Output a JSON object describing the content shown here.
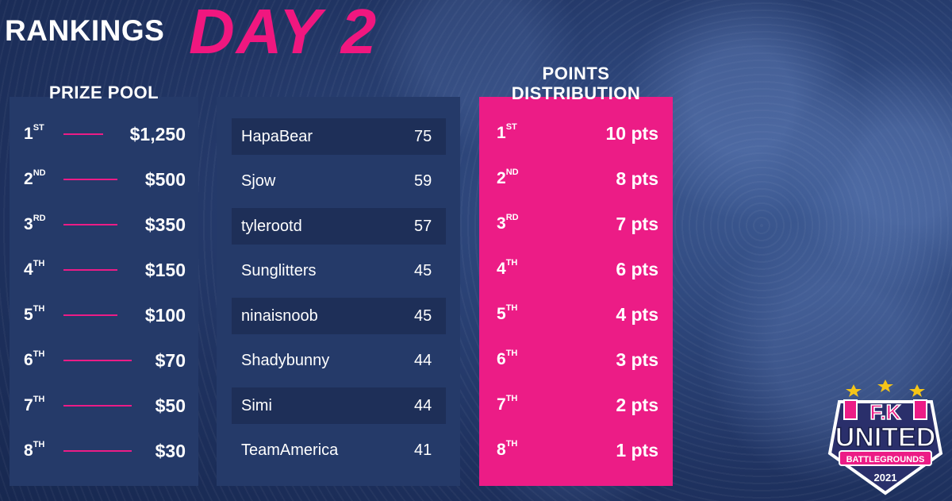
{
  "header": {
    "rankings": "RANKINGS",
    "day": "DAY 2"
  },
  "prize_pool": {
    "heading": "PRIZE POOL",
    "rows": [
      {
        "place": "1",
        "suffix": "ST",
        "amount": "$1,250"
      },
      {
        "place": "2",
        "suffix": "ND",
        "amount": "$500"
      },
      {
        "place": "3",
        "suffix": "RD",
        "amount": "$350"
      },
      {
        "place": "4",
        "suffix": "TH",
        "amount": "$150"
      },
      {
        "place": "5",
        "suffix": "TH",
        "amount": "$100"
      },
      {
        "place": "6",
        "suffix": "TH",
        "amount": "$70"
      },
      {
        "place": "7",
        "suffix": "TH",
        "amount": "$50"
      },
      {
        "place": "8",
        "suffix": "TH",
        "amount": "$30"
      }
    ]
  },
  "standings": [
    {
      "name": "HapaBear",
      "score": "75"
    },
    {
      "name": "Sjow",
      "score": "59"
    },
    {
      "name": "tylerootd",
      "score": "57"
    },
    {
      "name": "Sunglitters",
      "score": "45"
    },
    {
      "name": "ninaisnoob",
      "score": "45"
    },
    {
      "name": "Shadybunny",
      "score": "44"
    },
    {
      "name": "Simi",
      "score": "44"
    },
    {
      "name": "TeamAmerica",
      "score": "41"
    }
  ],
  "points_distribution": {
    "heading_line1": "POINTS",
    "heading_line2": "DISTRIBUTION",
    "rows": [
      {
        "place": "1",
        "suffix": "ST",
        "points": "10 pts"
      },
      {
        "place": "2",
        "suffix": "ND",
        "points": "8 pts"
      },
      {
        "place": "3",
        "suffix": "RD",
        "points": "7 pts"
      },
      {
        "place": "4",
        "suffix": "TH",
        "points": "6 pts"
      },
      {
        "place": "5",
        "suffix": "TH",
        "points": "4 pts"
      },
      {
        "place": "6",
        "suffix": "TH",
        "points": "3 pts"
      },
      {
        "place": "7",
        "suffix": "TH",
        "points": "2 pts"
      },
      {
        "place": "8",
        "suffix": "TH",
        "points": "1 pts"
      }
    ]
  },
  "logo": {
    "top": "F.K",
    "main": "UNITED",
    "banner": "BATTLEGROUNDS",
    "year": "2021"
  },
  "colors": {
    "accent": "#ec1c86",
    "panel": "#253a69",
    "background": "#1f3260"
  }
}
